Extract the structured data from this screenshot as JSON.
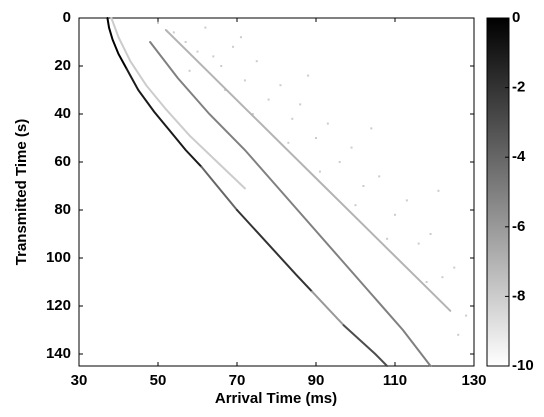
{
  "chart_data": {
    "type": "heatmap",
    "xlabel": "Arrival Time (ms)",
    "ylabel": "Transmitted Time (s)",
    "xlim": [
      30,
      130
    ],
    "xticks": [
      30,
      50,
      70,
      90,
      110,
      130
    ],
    "ylim": [
      0,
      145
    ],
    "yticks": [
      0,
      20,
      40,
      60,
      80,
      100,
      120,
      140
    ],
    "y_inverted": true,
    "clim": [
      -10,
      0
    ],
    "cticks": [
      0,
      -2,
      -4,
      -6,
      -8,
      -10
    ],
    "colormap": "gray",
    "series": [
      {
        "level": 0,
        "x": [
          37.2,
          37.6,
          38.5,
          40,
          42
        ],
        "y": [
          0,
          4,
          9,
          15,
          21
        ]
      },
      {
        "level": -1,
        "x": [
          42,
          45,
          49,
          53,
          57,
          61
        ],
        "y": [
          21,
          30,
          39,
          47,
          55,
          62
        ]
      },
      {
        "level": -4,
        "x": [
          61,
          64,
          67,
          70
        ],
        "y": [
          62,
          68,
          74,
          80
        ]
      },
      {
        "level": -2,
        "x": [
          70,
          75,
          80,
          85,
          89
        ],
        "y": [
          80,
          89,
          98,
          107,
          114
        ]
      },
      {
        "level": -6,
        "x": [
          89,
          93,
          97
        ],
        "y": [
          114,
          121,
          128
        ]
      },
      {
        "level": -3,
        "x": [
          97,
          101,
          105,
          108
        ],
        "y": [
          128,
          134,
          140,
          145
        ]
      },
      {
        "level": -8,
        "x": [
          38.2,
          40,
          43,
          47,
          52,
          58,
          65,
          72
        ],
        "y": [
          0,
          8,
          18,
          28,
          38,
          49,
          60,
          71
        ]
      },
      {
        "level": -5,
        "x": [
          48,
          55,
          63,
          72,
          80,
          88,
          96,
          104,
          112,
          119
        ],
        "y": [
          10,
          25,
          40,
          55,
          70,
          85,
          100,
          115,
          130,
          145
        ]
      },
      {
        "level": -7,
        "x": [
          52,
          60,
          68,
          76,
          84,
          92,
          100,
          108,
          116,
          124
        ],
        "y": [
          5,
          18,
          31,
          44,
          57,
          70,
          83,
          96,
          109,
          122
        ]
      }
    ],
    "points": {
      "level": -8,
      "x": [
        50,
        54,
        57,
        60,
        62,
        66,
        69,
        72,
        75,
        78,
        81,
        84,
        86,
        90,
        93,
        96,
        99,
        102,
        106,
        110,
        113,
        116,
        119,
        122,
        125,
        128,
        58,
        67,
        74,
        83,
        91,
        100,
        108,
        118,
        126,
        71,
        88,
        104,
        121,
        64
      ],
      "y": [
        2,
        6,
        10,
        14,
        4,
        20,
        12,
        26,
        18,
        34,
        28,
        42,
        36,
        50,
        44,
        60,
        54,
        70,
        66,
        82,
        76,
        94,
        90,
        108,
        104,
        124,
        22,
        30,
        40,
        52,
        64,
        78,
        92,
        110,
        132,
        8,
        24,
        46,
        72,
        16
      ]
    }
  }
}
